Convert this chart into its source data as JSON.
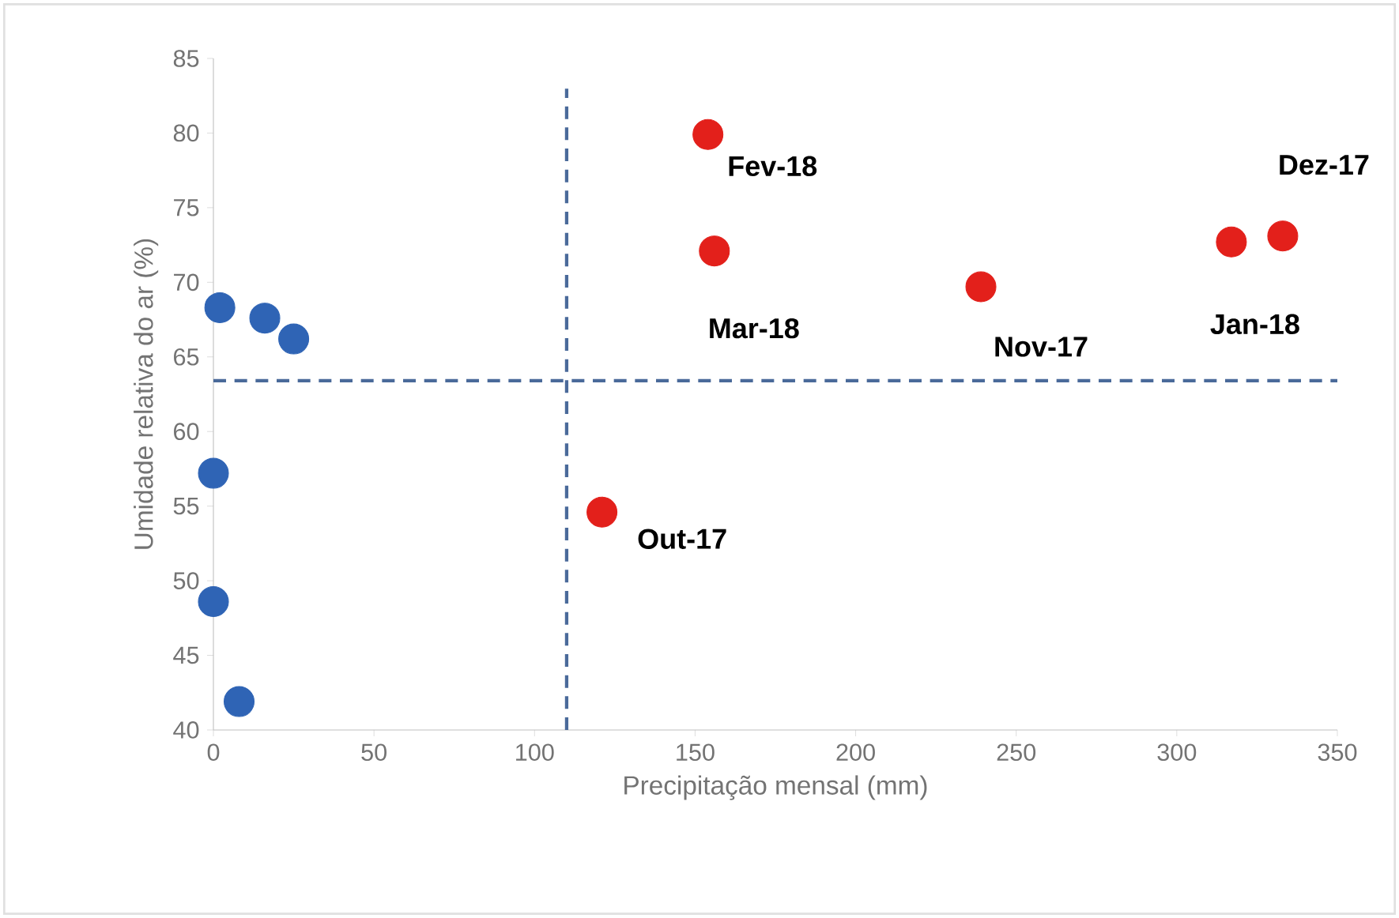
{
  "chart_data": {
    "type": "scatter",
    "xlabel": "Precipitação mensal (mm)",
    "ylabel": "Umidade relativa do ar (%)",
    "xlim": [
      0,
      350
    ],
    "ylim": [
      40,
      85
    ],
    "xticks": [
      0,
      50,
      100,
      150,
      200,
      250,
      300,
      350
    ],
    "yticks": [
      40,
      45,
      50,
      55,
      60,
      65,
      70,
      75,
      80,
      85
    ],
    "grid": false,
    "series": [
      {
        "color": "#2f64b5",
        "x": [
          2,
          16,
          25,
          0,
          0,
          8
        ],
        "values": [
          68.3,
          67.6,
          66.2,
          57.2,
          48.6,
          41.9
        ]
      },
      {
        "color": "#e3201b",
        "x": [
          154,
          156,
          239,
          317,
          333,
          121
        ],
        "values": [
          79.9,
          72.1,
          69.7,
          72.7,
          73.1,
          54.6
        ]
      }
    ],
    "ref_lines": [
      {
        "axis": "x",
        "value": 110,
        "color": "#4a6a9a",
        "line_style": "dashed"
      },
      {
        "axis": "y",
        "value": 63.4,
        "color": "#4a6a9a",
        "line_style": "dashed"
      }
    ],
    "annotations": [
      {
        "text": "Fev-18",
        "x": 154,
        "y": 79.9
      },
      {
        "text": "Mar-18",
        "x": 156,
        "y": 72.1
      },
      {
        "text": "Nov-17",
        "x": 239,
        "y": 69.7
      },
      {
        "text": "Jan-18",
        "x": 317,
        "y": 72.7
      },
      {
        "text": "Dez-17",
        "x": 333,
        "y": 73.1
      },
      {
        "text": "Out-17",
        "x": 121,
        "y": 54.6
      }
    ]
  }
}
